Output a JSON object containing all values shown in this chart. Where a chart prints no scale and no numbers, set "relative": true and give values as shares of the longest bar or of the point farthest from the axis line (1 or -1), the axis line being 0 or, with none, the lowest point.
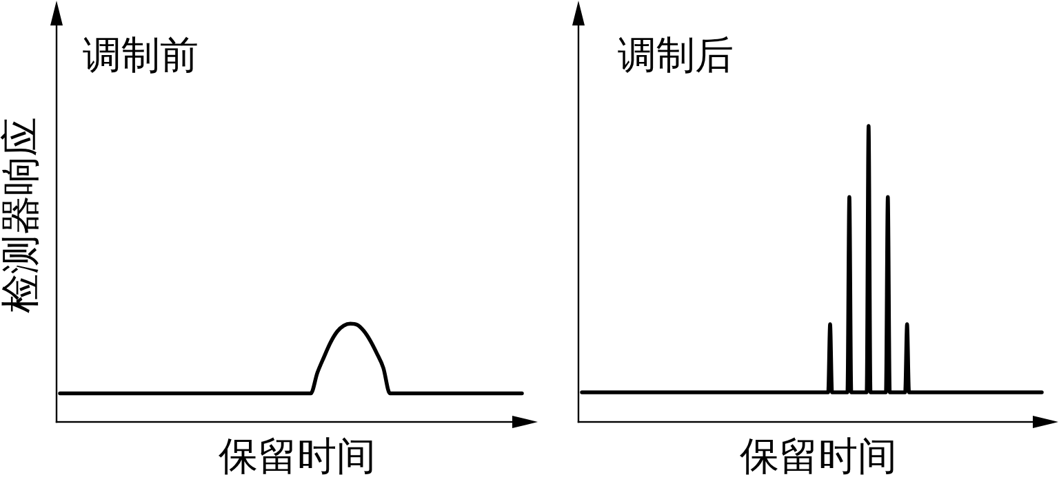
{
  "chart_data": [
    {
      "type": "line",
      "title": "调制前",
      "xlabel": "保留时间",
      "ylabel": "检测器响应",
      "relative": true,
      "categories": [
        null,
        null,
        null,
        null,
        null,
        null,
        null,
        null,
        null,
        null,
        null,
        null,
        null,
        null,
        null,
        null,
        null,
        null,
        null,
        null,
        null,
        null,
        null,
        null,
        null,
        null,
        null,
        null,
        null,
        null,
        null,
        null,
        null,
        null,
        null,
        null,
        null,
        null,
        null,
        null,
        null,
        null,
        null,
        null,
        null,
        null,
        null,
        null,
        null,
        null,
        null,
        null,
        null,
        null,
        null,
        null,
        null,
        null,
        null,
        null,
        null,
        null,
        null,
        null,
        null,
        null,
        null,
        null,
        null,
        null,
        null
      ],
      "series": [
        {
          "color": "#000000",
          "values": [
            0.29,
            0.29,
            0.29,
            0.29,
            0.29,
            0.29,
            0.29,
            0.29,
            0.29,
            0.29,
            0.29,
            0.29,
            0.29,
            0.29,
            0.29,
            0.29,
            0.29,
            0.29,
            0.29,
            0.29,
            0.29,
            0.29,
            0.29,
            0.29,
            0.29,
            0.29,
            0.29,
            0.29,
            0.29,
            0.29,
            0.29,
            0.29,
            0.29,
            0.29,
            0.29,
            0.29,
            0.29,
            0.29,
            0.29,
            0.5,
            0.66,
            0.81,
            0.92,
            0.98,
            1,
            0.99,
            0.93,
            0.83,
            0.7,
            0.55,
            0.29,
            0.29,
            0.29,
            0.29,
            0.29,
            0.29,
            0.29,
            0.29,
            0.29,
            0.29,
            0.29,
            0.29,
            0.29,
            0.29,
            0.29,
            0.29,
            0.29,
            0.29,
            0.29,
            0.29,
            0.29
          ]
        }
      ]
    },
    {
      "type": "line",
      "title": "调制后",
      "xlabel": "保留时间",
      "relative": true,
      "categories": [
        null,
        null,
        null,
        null,
        null,
        null,
        null,
        null,
        null,
        null,
        null,
        null,
        null,
        null,
        null,
        null,
        null,
        null,
        null,
        null,
        null,
        null,
        null,
        null,
        null,
        null,
        null,
        null,
        null,
        null,
        null,
        null,
        null,
        null,
        null,
        null,
        null,
        null,
        null,
        null,
        null,
        null,
        null,
        null,
        null,
        null,
        null,
        null,
        null,
        null,
        null,
        null,
        null,
        null,
        null,
        null,
        null,
        null,
        null,
        null,
        null,
        null,
        null,
        null,
        null,
        null,
        null,
        null,
        null,
        null,
        null,
        null,
        null,
        null,
        null,
        null,
        null,
        null,
        null,
        null,
        null,
        null,
        null,
        null,
        null,
        null,
        null,
        null,
        null,
        null,
        null,
        null,
        null,
        null,
        null,
        null,
        null,
        null,
        null,
        null,
        null,
        null,
        null,
        null,
        null,
        null,
        null,
        null,
        null,
        null,
        null,
        null,
        null,
        null,
        null,
        null,
        null,
        null,
        null,
        null,
        null,
        null,
        null,
        null,
        null,
        null,
        null,
        null,
        null,
        null,
        null,
        null,
        null,
        null,
        null,
        null,
        null,
        null,
        null,
        null,
        null,
        null,
        null,
        null,
        null,
        null,
        null,
        null,
        null,
        null,
        null,
        null,
        null,
        null,
        null,
        null,
        null,
        null,
        null,
        null,
        null,
        null,
        null,
        null,
        null,
        null,
        null,
        null,
        null,
        null,
        null,
        null,
        null,
        null,
        null,
        null,
        null,
        null,
        null,
        null,
        null,
        null,
        null,
        null,
        null,
        null,
        null,
        null,
        null,
        null,
        null,
        null,
        null,
        null,
        null,
        null,
        null,
        null,
        null,
        null,
        null,
        null,
        null,
        null,
        null,
        null,
        null,
        null,
        null,
        null,
        null,
        null,
        null,
        null,
        null,
        null,
        null,
        null,
        null,
        null,
        null,
        null,
        null,
        null,
        null,
        null,
        null,
        null,
        null,
        null,
        null,
        null,
        null,
        null,
        null,
        null,
        null,
        null,
        null,
        null
      ],
      "series": [
        {
          "color": "#000000",
          "values": [
            0.1,
            0.1,
            0.1,
            0.1,
            0.1,
            0.1,
            0.1,
            0.1,
            0.1,
            0.1,
            0.1,
            0.1,
            0.1,
            0.1,
            0.1,
            0.1,
            0.1,
            0.1,
            0.1,
            0.1,
            0.1,
            0.1,
            0.1,
            0.1,
            0.1,
            0.1,
            0.1,
            0.1,
            0.1,
            0.1,
            0.1,
            0.1,
            0.1,
            0.1,
            0.1,
            0.1,
            0.1,
            0.1,
            0.1,
            0.1,
            0.1,
            0.1,
            0.1,
            0.1,
            0.1,
            0.1,
            0.1,
            0.1,
            0.1,
            0.1,
            0.1,
            0.1,
            0.1,
            0.1,
            0.1,
            0.1,
            0.1,
            0.1,
            0.1,
            0.1,
            0.1,
            0.1,
            0.1,
            0.1,
            0.1,
            0.1,
            0.1,
            0.1,
            0.1,
            0.1,
            0.1,
            0.1,
            0.1,
            0.1,
            0.1,
            0.1,
            0.1,
            0.1,
            0.1,
            0.1,
            0.1,
            0.1,
            0.1,
            0.1,
            0.1,
            0.1,
            0.1,
            0.1,
            0.1,
            0.1,
            0.1,
            0.1,
            0.1,
            0.1,
            0.1,
            0.1,
            0.1,
            0.1,
            0.1,
            0.1,
            0.1,
            0.1,
            0.1,
            0.1,
            0.1,
            0.1,
            0.1,
            0.1,
            0.1,
            0.1,
            0.1,
            0.1,
            0.1,
            0.1,
            0.1,
            0.1,
            0.1,
            0.1,
            0.1,
            0.1,
            0.1,
            0.1,
            0.1,
            0.1,
            0.1,
            0.1,
            0.1,
            0.1,
            0.1,
            0.33,
            0.1,
            0.1,
            0.1,
            0.1,
            0.1,
            0.1,
            0.1,
            0.1,
            0.1,
            0.76,
            0.1,
            0.1,
            0.1,
            0.1,
            0.1,
            0.1,
            0.1,
            0.1,
            0.1,
            1,
            0.1,
            0.1,
            0.1,
            0.1,
            0.1,
            0.1,
            0.1,
            0.1,
            0.1,
            0.76,
            0.1,
            0.1,
            0.1,
            0.1,
            0.1,
            0.1,
            0.1,
            0.1,
            0.1,
            0.33,
            0.1,
            0.1,
            0.1,
            0.1,
            0.1,
            0.1,
            0.1,
            0.1,
            0.1,
            0.1,
            0.1,
            0.1,
            0.1,
            0.1,
            0.1,
            0.1,
            0.1,
            0.1,
            0.1,
            0.1,
            0.1,
            0.1,
            0.1,
            0.1,
            0.1,
            0.1,
            0.1,
            0.1,
            0.1,
            0.1,
            0.1,
            0.1,
            0.1,
            0.1,
            0.1,
            0.1,
            0.1,
            0.1,
            0.1,
            0.1,
            0.1,
            0.1,
            0.1,
            0.1,
            0.1,
            0.1,
            0.1,
            0.1,
            0.1,
            0.1,
            0.1,
            0.1,
            0.1,
            0.1,
            0.1,
            0.1,
            0.1,
            0.1,
            0.1,
            0.1,
            0.1,
            0.1,
            0.1,
            0.1,
            0.1,
            0.1,
            0.1,
            0.1,
            0.1,
            0.1
          ]
        }
      ]
    }
  ]
}
